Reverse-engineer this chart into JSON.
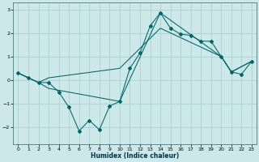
{
  "xlabel": "Humidex (Indice chaleur)",
  "bg_color": "#cce8e8",
  "grid_color": "#aacccc",
  "line_color": "#006666",
  "xlim": [
    -0.5,
    23.5
  ],
  "ylim": [
    -2.7,
    3.3
  ],
  "xticks": [
    0,
    1,
    2,
    3,
    4,
    5,
    6,
    7,
    8,
    9,
    10,
    11,
    12,
    13,
    14,
    15,
    16,
    17,
    18,
    19,
    20,
    21,
    22,
    23
  ],
  "yticks": [
    -2,
    -1,
    0,
    1,
    2,
    3
  ],
  "line1_x": [
    0,
    1,
    2,
    3,
    4,
    5,
    6,
    7,
    8,
    9,
    10,
    11,
    12,
    13,
    14,
    15,
    16,
    17,
    18,
    19,
    20,
    21,
    22,
    23
  ],
  "line1_y": [
    0.3,
    0.1,
    -0.1,
    -0.1,
    -0.5,
    -1.15,
    -2.15,
    -1.7,
    -2.1,
    -1.1,
    -0.9,
    0.5,
    1.15,
    2.3,
    2.85,
    2.2,
    1.95,
    1.9,
    1.65,
    1.65,
    1.0,
    0.35,
    0.25,
    0.8
  ],
  "line2_x": [
    0,
    2,
    3,
    10,
    14,
    20,
    21,
    23
  ],
  "line2_y": [
    0.3,
    -0.1,
    -0.35,
    -0.9,
    2.85,
    1.0,
    0.35,
    0.8
  ],
  "line3_x": [
    0,
    2,
    3,
    10,
    14,
    20,
    21,
    23
  ],
  "line3_y": [
    0.3,
    -0.1,
    0.1,
    0.5,
    2.2,
    1.0,
    0.35,
    0.8
  ]
}
